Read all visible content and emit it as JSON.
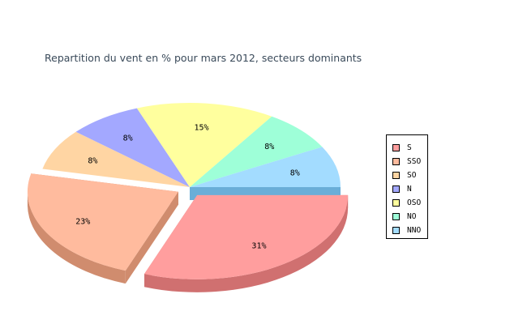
{
  "chart_data": {
    "type": "pie",
    "title": "Repartition du vent en % pour mars 2012, secteurs dominants",
    "slices": [
      {
        "label": "S",
        "value": 31,
        "display": "31%",
        "color": "#ff9e9e",
        "side": "#d07070",
        "exploded": true
      },
      {
        "label": "SSO",
        "value": 23,
        "display": "23%",
        "color": "#ffbb9e",
        "side": "#d08c6e",
        "exploded": true
      },
      {
        "label": "SO",
        "value": 8,
        "display": "8%",
        "color": "#ffd5a3",
        "side": "#d0a878",
        "exploded": false
      },
      {
        "label": "N",
        "value": 8,
        "display": "8%",
        "color": "#a3a8ff",
        "side": "#7c80d0",
        "exploded": false
      },
      {
        "label": "OSO",
        "value": 15,
        "display": "15%",
        "color": "#ffff9e",
        "side": "#d0d070",
        "exploded": false
      },
      {
        "label": "NO",
        "value": 8,
        "display": "8%",
        "color": "#9effd8",
        "side": "#70d0a8",
        "exploded": false
      },
      {
        "label": "NNO",
        "value": 8,
        "display": "8%",
        "color": "#a3dcff",
        "side": "#6ab0d8",
        "exploded": false
      }
    ],
    "legend_position": "right"
  }
}
